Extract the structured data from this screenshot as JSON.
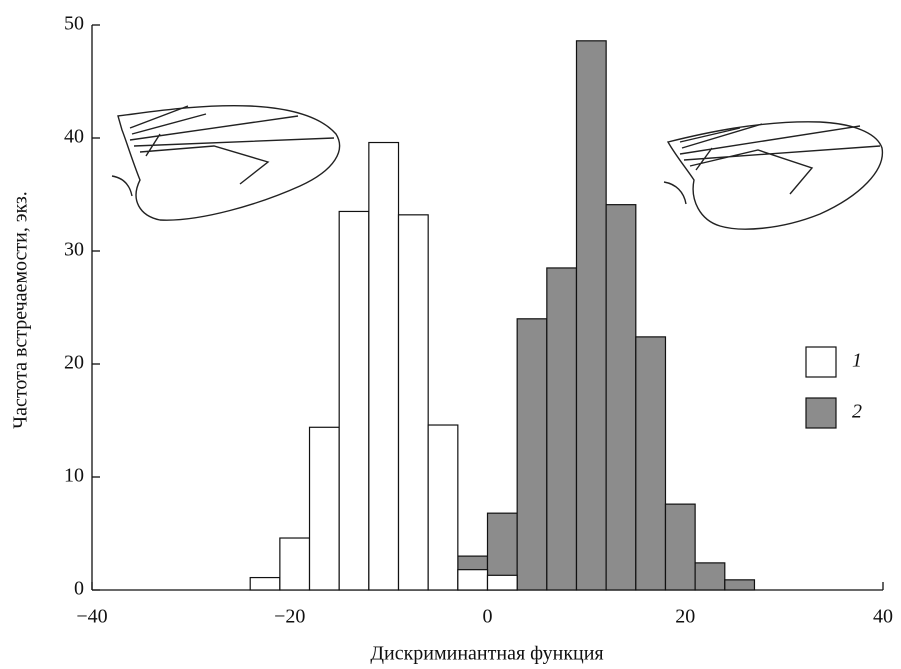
{
  "chart_data": {
    "type": "histogram",
    "x_label": "Дискриминантная функция",
    "y_label": "Частота встречаемости, экз.",
    "bins": [
      -24,
      -21,
      -18,
      -15,
      -12,
      -9,
      -6,
      -3,
      0,
      3,
      6,
      9,
      12,
      15,
      18,
      21,
      24,
      27
    ],
    "series": [
      {
        "name": "1",
        "color": "#ffffff",
        "values": [
          1.1,
          4.6,
          14.4,
          33.5,
          39.6,
          33.2,
          14.6,
          1.8,
          1.3,
          null,
          null,
          null,
          null,
          null,
          null,
          null,
          null
        ]
      },
      {
        "name": "2",
        "color": "#8c8c8c",
        "values": [
          null,
          null,
          null,
          null,
          null,
          null,
          null,
          3.0,
          6.8,
          24.0,
          28.5,
          48.6,
          34.1,
          22.4,
          7.6,
          2.4,
          0.9
        ]
      }
    ],
    "xlim": [
      -40,
      40
    ],
    "xticks": [
      {
        "value": -40,
        "label": "−40"
      },
      {
        "value": -20,
        "label": "−20"
      },
      0,
      20,
      40
    ],
    "ylim": [
      0,
      50
    ],
    "yticks": [
      0,
      10,
      20,
      30,
      40,
      50
    ]
  }
}
